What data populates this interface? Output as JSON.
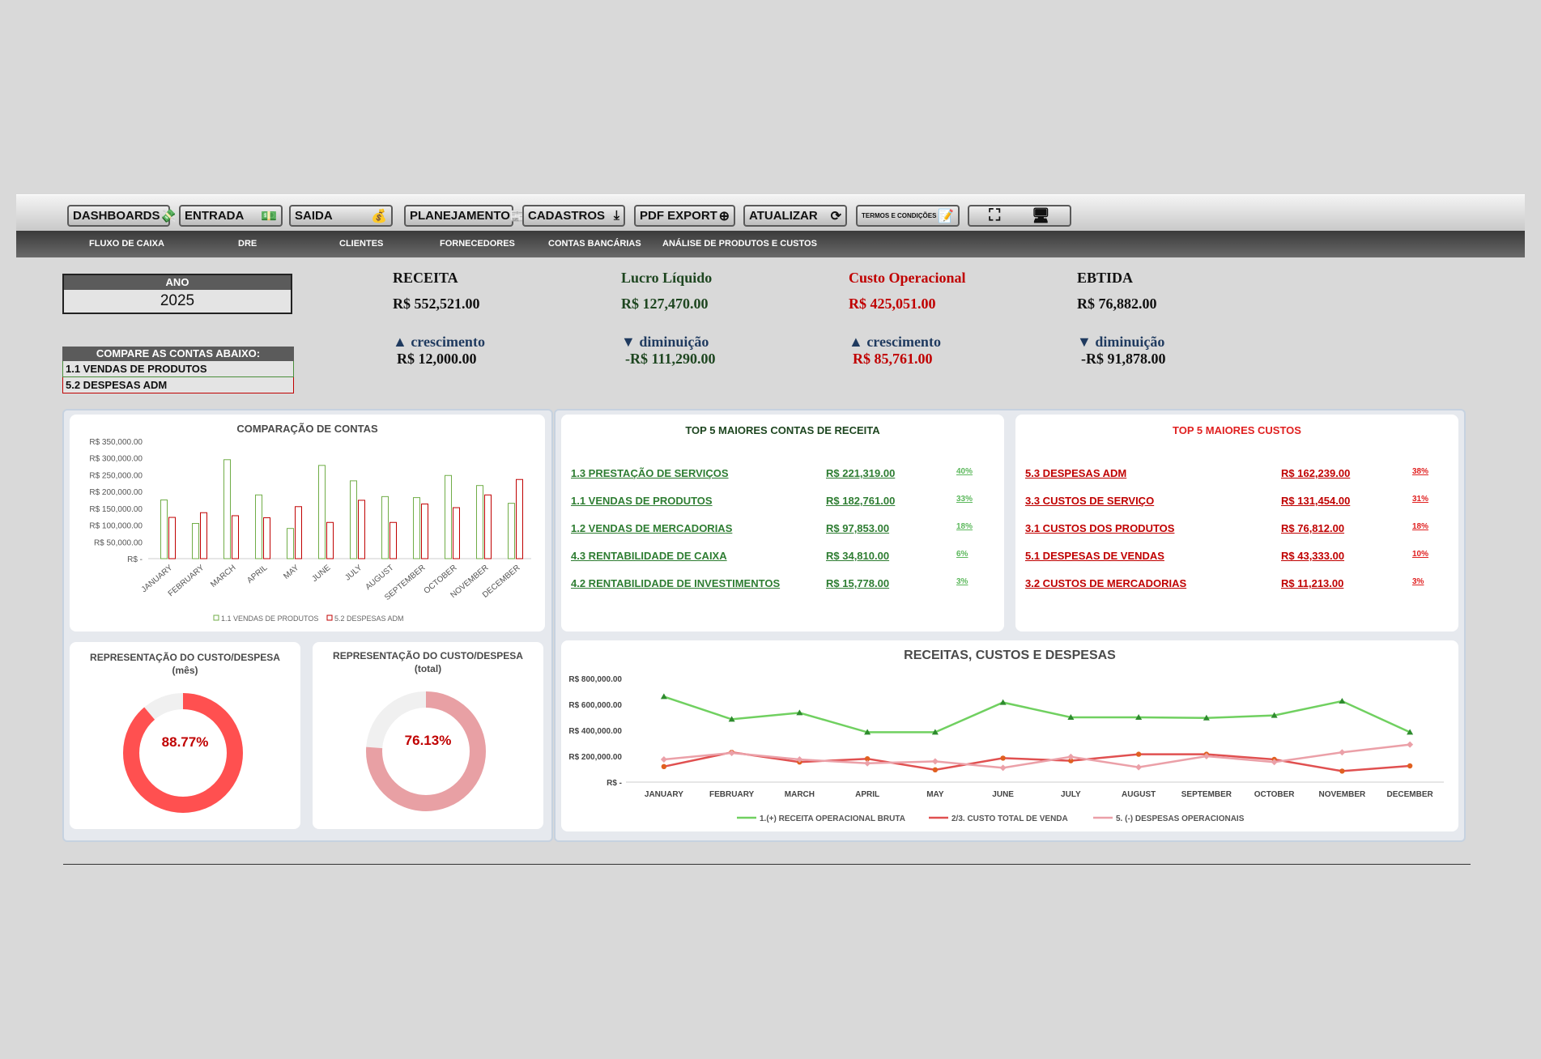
{
  "toolbar": {
    "buttons": [
      {
        "label": "DASHBOARDS",
        "icon": "💸"
      },
      {
        "label": "ENTRADA",
        "icon": "💵"
      },
      {
        "label": "SAIDA",
        "icon": "💰"
      },
      {
        "label": "PLANEJAMENTO",
        "icon": "📰"
      },
      {
        "label": "CADASTROS",
        "icon": "⤓"
      },
      {
        "label": "PDF EXPORT",
        "icon": "⊕"
      },
      {
        "label": "ATUALIZAR",
        "icon": "⟳"
      },
      {
        "label": "TERMOS E CONDIÇÕES",
        "icon": "📝"
      }
    ]
  },
  "menu": [
    "FLUXO DE CAIXA",
    "DRE",
    "CLIENTES",
    "FORNECEDORES",
    "CONTAS BANCÁRIAS",
    "ANÁLISE DE PRODUTOS E CUSTOS"
  ],
  "year": {
    "label": "ANO",
    "value": "2025"
  },
  "compare": {
    "title": "COMPARE AS CONTAS ABAIXO:",
    "account1": "1.1 VENDAS DE PRODUTOS",
    "account2": "5.2 DESPESAS ADM"
  },
  "kpis": [
    {
      "title": "RECEITA",
      "value": "R$ 552,521.00",
      "trend": "▲ crescimento",
      "delta": "R$ 12,000.00",
      "title_color": "#111111",
      "value_color": "#111111",
      "delta_color": "#111111"
    },
    {
      "title": "Lucro Líquido",
      "value": "R$ 127,470.00",
      "trend": "▼ diminuição",
      "delta": "-R$ 111,290.00",
      "title_color": "#1e4620",
      "value_color": "#1e4620",
      "delta_color": "#1e4620"
    },
    {
      "title": "Custo Operacional",
      "value": "R$ 425,051.00",
      "trend": "▲ crescimento",
      "delta": "R$ 85,761.00",
      "title_color": "#c00000",
      "value_color": "#c00000",
      "delta_color": "#c00000"
    },
    {
      "title": "EBTIDA",
      "value": "R$ 76,882.00",
      "trend": "▼ diminuição",
      "delta": "-R$ 91,878.00",
      "title_color": "#111111",
      "value_color": "#111111",
      "delta_color": "#111111"
    }
  ],
  "bar_chart": {
    "title": "COMPARAÇÃO DE CONTAS",
    "legend": [
      "1.1 VENDAS DE PRODUTOS",
      "5.2 DESPESAS ADM"
    ]
  },
  "top_revenue": {
    "title": "TOP 5 MAIORES CONTAS DE RECEITA",
    "rows": [
      {
        "name": "1.3 PRESTAÇÃO DE SERVIÇOS",
        "value": "R$ 221,319.00",
        "pct": "40%"
      },
      {
        "name": "1.1 VENDAS DE PRODUTOS",
        "value": "R$ 182,761.00",
        "pct": "33%"
      },
      {
        "name": "1.2 VENDAS DE MERCADORIAS",
        "value": "R$ 97,853.00",
        "pct": "18%"
      },
      {
        "name": "4.3 RENTABILIDADE DE CAIXA",
        "value": "R$ 34,810.00",
        "pct": "6%"
      },
      {
        "name": "4.2 RENTABILIDADE DE INVESTIMENTOS",
        "value": "R$ 15,778.00",
        "pct": "3%"
      }
    ]
  },
  "top_costs": {
    "title": "TOP 5 MAIORES CUSTOS",
    "rows": [
      {
        "name": "5.3 DESPESAS ADM",
        "value": "R$ 162,239.00",
        "pct": "38%"
      },
      {
        "name": "3.3 CUSTOS DE SERVIÇO",
        "value": "R$ 131,454.00",
        "pct": "31%"
      },
      {
        "name": "3.1 CUSTOS DOS PRODUTOS",
        "value": "R$ 76,812.00",
        "pct": "18%"
      },
      {
        "name": "5.1 DESPESAS DE VENDAS",
        "value": "R$ 43,333.00",
        "pct": "10%"
      },
      {
        "name": "3.2 CUSTOS DE MERCADORIAS",
        "value": "R$ 11,213.00",
        "pct": "3%"
      }
    ]
  },
  "donut_month": {
    "title": "REPRESENTAÇÃO  DO CUSTO/DESPESA",
    "subtitle": "(mês)",
    "value": "88.77%",
    "fraction": 0.8877,
    "color": "#ff5050"
  },
  "donut_total": {
    "title": "REPRESENTAÇÃO  DO CUSTO/DESPESA",
    "subtitle": "(total)",
    "value": "76.13%",
    "fraction": 0.7613,
    "color": "#e8a0a4"
  },
  "line_chart": {
    "title": "RECEITAS, CUSTOS E DESPESAS",
    "legend": [
      "1.(+) RECEITA OPERACIONAL BRUTA",
      "2/3. CUSTO TOTAL DE VENDA",
      "5. (-) DESPESAS OPERACIONAIS"
    ]
  },
  "chart_data": [
    {
      "type": "bar",
      "title": "COMPARAÇÃO DE CONTAS",
      "categories": [
        "JANUARY",
        "FEBRUARY",
        "MARCH",
        "APRIL",
        "MAY",
        "JUNE",
        "JULY",
        "AUGUST",
        "SEPTEMBER",
        "OCTOBER",
        "NOVEMBER",
        "DECEMBER"
      ],
      "series": [
        {
          "name": "1.1 VENDAS DE PRODUTOS",
          "color": "#70ad47",
          "values": [
            175000,
            105000,
            295000,
            190000,
            90000,
            278000,
            232000,
            185000,
            182000,
            248000,
            218000,
            165000
          ]
        },
        {
          "name": "5.2 DESPESAS ADM",
          "color": "#c00000",
          "values": [
            123000,
            137000,
            128000,
            122000,
            155000,
            108000,
            174000,
            108000,
            163000,
            152000,
            190000,
            236000
          ]
        }
      ],
      "ylim": [
        0,
        350000
      ],
      "yticks": [
        "R$ -",
        "R$ 50,000.00",
        "R$ 100,000.00",
        "R$ 150,000.00",
        "R$ 200,000.00",
        "R$ 250,000.00",
        "R$ 300,000.00",
        "R$ 350,000.00"
      ],
      "legend_position": "bottom"
    },
    {
      "type": "line",
      "title": "RECEITAS, CUSTOS E DESPESAS",
      "categories": [
        "JANUARY",
        "FEBRUARY",
        "MARCH",
        "APRIL",
        "MAY",
        "JUNE",
        "JULY",
        "AUGUST",
        "SEPTEMBER",
        "OCTOBER",
        "NOVEMBER",
        "DECEMBER"
      ],
      "series": [
        {
          "name": "1.(+) RECEITA OPERACIONAL BRUTA",
          "color": "#70d060",
          "marker": "triangle",
          "values": [
            660000,
            485000,
            535000,
            385000,
            385000,
            615000,
            500000,
            500000,
            495000,
            515000,
            625000,
            385000
          ]
        },
        {
          "name": "2/3. CUSTO TOTAL DE VENDA",
          "color": "#e05050",
          "marker": "circle",
          "values": [
            120000,
            230000,
            155000,
            180000,
            95000,
            185000,
            165000,
            215000,
            215000,
            175000,
            85000,
            125000
          ]
        },
        {
          "name": "5. (-) DESPESAS OPERACIONAIS",
          "color": "#eba0a8",
          "marker": "diamond",
          "values": [
            175000,
            225000,
            175000,
            145000,
            160000,
            110000,
            195000,
            115000,
            200000,
            155000,
            230000,
            290000
          ]
        }
      ],
      "ylim": [
        0,
        800000
      ],
      "yticks": [
        "R$ -",
        "R$ 200,000.00",
        "R$ 400,000.00",
        "R$ 600,000.00",
        "R$ 800,000.00"
      ],
      "legend_position": "bottom"
    }
  ]
}
